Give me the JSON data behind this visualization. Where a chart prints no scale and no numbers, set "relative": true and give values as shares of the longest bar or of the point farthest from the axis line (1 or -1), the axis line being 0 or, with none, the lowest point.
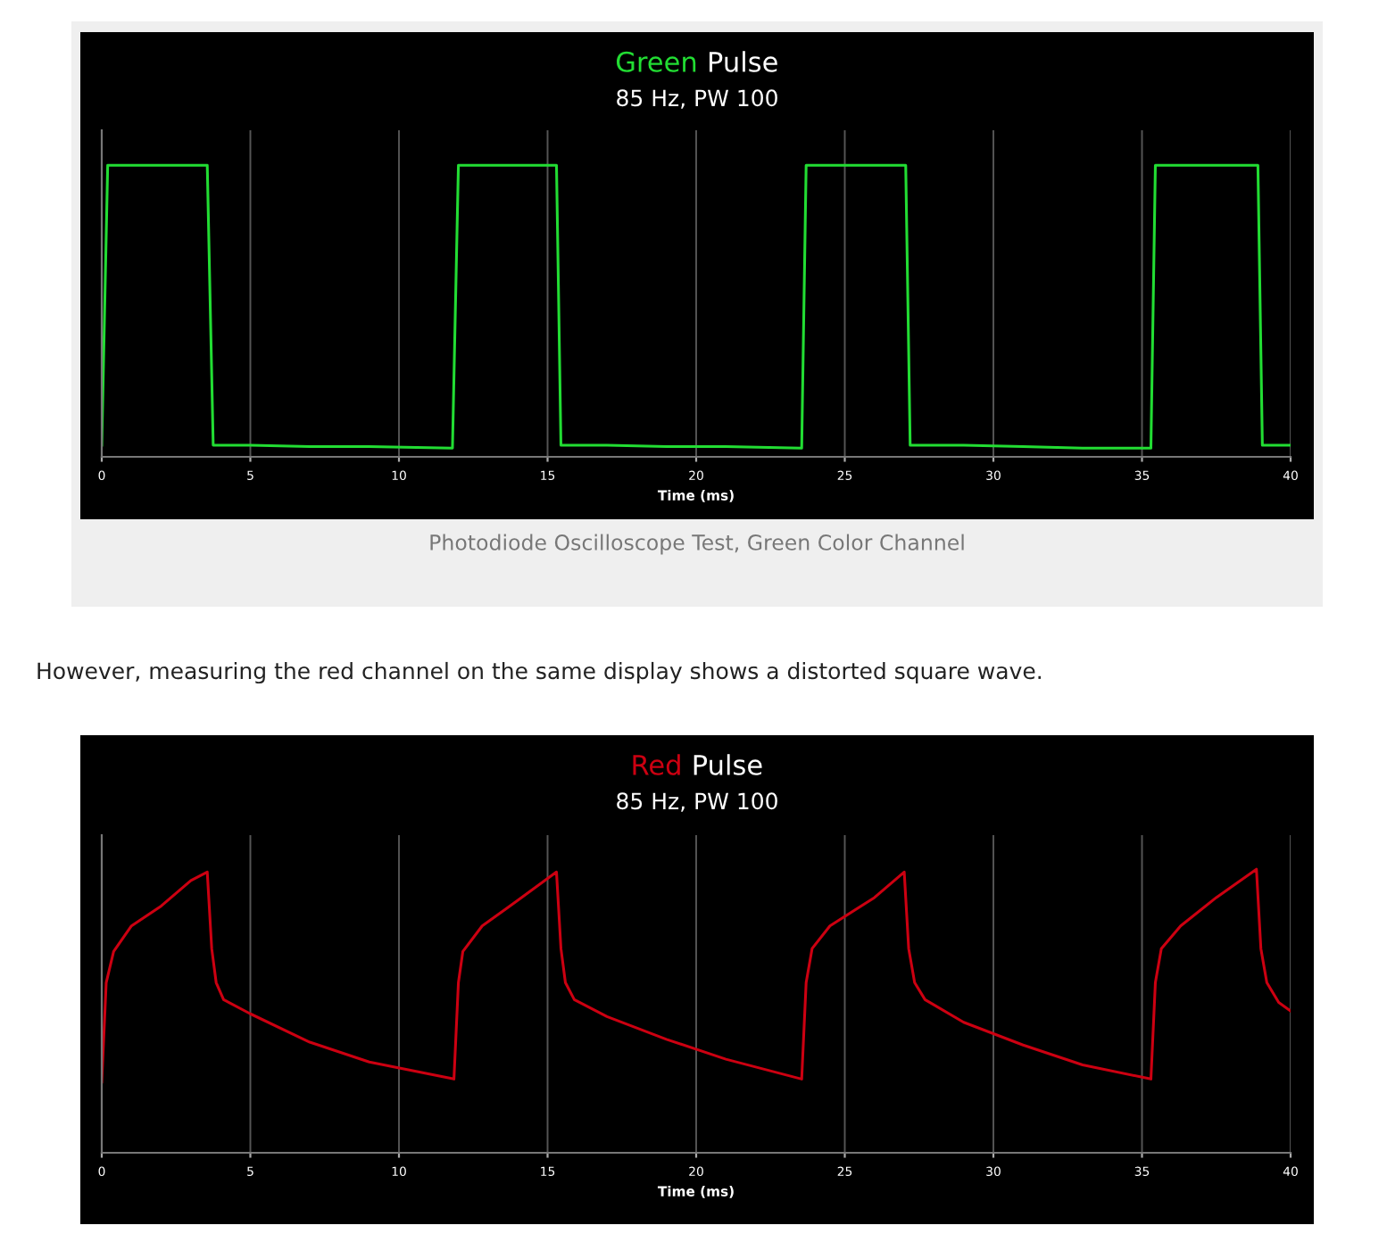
{
  "chart_data": [
    {
      "type": "line",
      "title": "Green Pulse",
      "subtitle": "85 Hz, PW 100",
      "xlabel": "Time (ms)",
      "relative": true,
      "xlim": [
        0,
        40
      ],
      "xticks": [
        0,
        5,
        10,
        15,
        20,
        25,
        30,
        35,
        40
      ],
      "grid": "x",
      "tick_labels": "x",
      "series": [
        {
          "color": "#22dd33",
          "x": [
            0,
            0.2,
            1,
            2,
            3,
            3.55,
            3.75,
            5,
            7,
            9,
            11.8,
            12.0,
            13,
            14,
            15.3,
            15.45,
            17,
            19,
            21,
            23.55,
            23.7,
            25,
            27.05,
            27.2,
            29,
            31,
            33,
            35.3,
            35.45,
            37,
            38.9,
            39.05,
            40
          ],
          "values": [
            0.04,
            1,
            1,
            1,
            1,
            1,
            0.04,
            0.04,
            0.035,
            0.035,
            0.03,
            1,
            1,
            1,
            1,
            0.04,
            0.04,
            0.035,
            0.035,
            0.03,
            1,
            1,
            1,
            0.04,
            0.04,
            0.035,
            0.03,
            0.03,
            1,
            1,
            1,
            0.04,
            0.04
          ]
        }
      ],
      "annotations": [
        "Photodiode Oscilloscope Test, Green Color Channel"
      ]
    },
    {
      "type": "line",
      "title": "Red Pulse",
      "subtitle": "85 Hz, PW 100",
      "xlabel": "Time (ms)",
      "relative": true,
      "xlim": [
        0,
        40
      ],
      "xticks": [
        0,
        5,
        10,
        15,
        20,
        25,
        30,
        35,
        40
      ],
      "grid": "x",
      "tick_labels": "x",
      "series": [
        {
          "color": "#cc0011",
          "x": [
            0,
            0.15,
            0.4,
            1,
            2,
            3,
            3.55,
            3.7,
            3.85,
            4.1,
            5,
            7,
            9,
            11.85,
            12.0,
            12.15,
            12.8,
            14,
            15.3,
            15.45,
            15.6,
            15.9,
            17,
            19,
            21,
            23.55,
            23.7,
            23.9,
            24.5,
            26,
            27.0,
            27.15,
            27.35,
            27.7,
            29,
            31,
            33,
            35.3,
            35.45,
            35.65,
            36.3,
            37.5,
            38.85,
            39.0,
            39.2,
            39.6,
            40
          ],
          "values": [
            0.25,
            0.6,
            0.71,
            0.8,
            0.87,
            0.96,
            0.99,
            0.72,
            0.6,
            0.54,
            0.49,
            0.39,
            0.32,
            0.26,
            0.6,
            0.71,
            0.8,
            0.89,
            0.99,
            0.72,
            0.6,
            0.54,
            0.48,
            0.4,
            0.33,
            0.26,
            0.6,
            0.72,
            0.8,
            0.9,
            0.99,
            0.72,
            0.6,
            0.54,
            0.46,
            0.38,
            0.31,
            0.26,
            0.6,
            0.72,
            0.8,
            0.9,
            1,
            0.72,
            0.6,
            0.53,
            0.5
          ]
        }
      ],
      "annotations": [
        "However, measuring the red channel on the same display shows a distorted square wave."
      ]
    }
  ]
}
